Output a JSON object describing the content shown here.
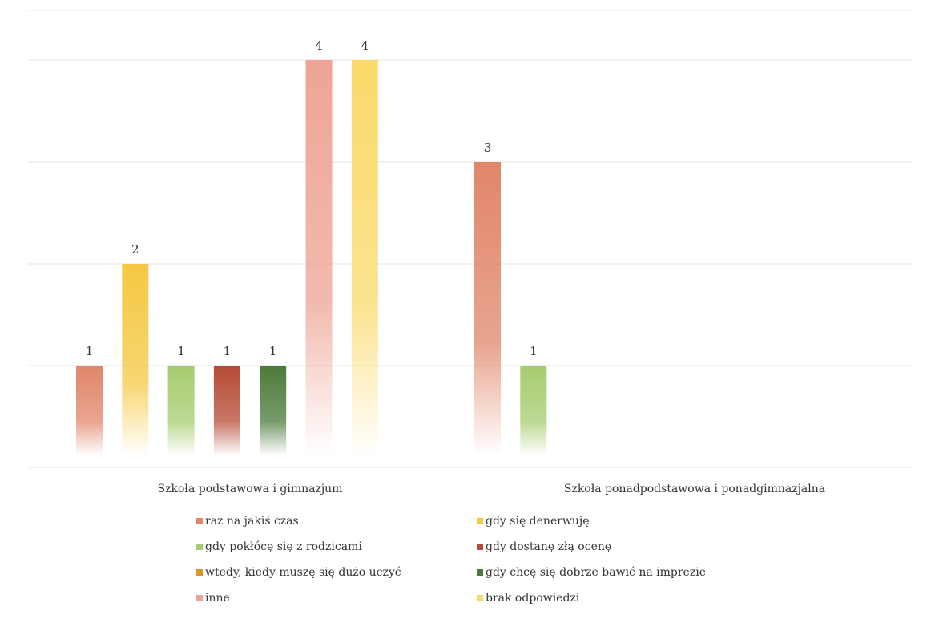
{
  "chart_data": {
    "type": "bar",
    "categories": [
      "Szkoła podstawowa i gimnazjum",
      "Szkoła ponadpodstawowa i ponadgimnazjalna"
    ],
    "series": [
      {
        "name": "raz na jakiś czas",
        "color": "#e0866a",
        "values": [
          1,
          3
        ]
      },
      {
        "name": "gdy się denerwuję",
        "color": "#f5c842",
        "values": [
          2,
          null
        ]
      },
      {
        "name": "gdy pokłócę się z rodzicami",
        "color": "#a6cc6e",
        "values": [
          1,
          1
        ]
      },
      {
        "name": "gdy dostanę złą ocenę",
        "color": "#b64a35",
        "values": [
          1,
          null
        ]
      },
      {
        "name": "wtedy, kiedy muszę się dużo uczyć",
        "color": "#d9952a",
        "values": [
          null,
          null
        ]
      },
      {
        "name": "gdy chcę się dobrze bawić na imprezie",
        "color": "#4c7a3a",
        "values": [
          1,
          null
        ]
      },
      {
        "name": "inne",
        "color": "#eea494",
        "values": [
          4,
          null
        ]
      },
      {
        "name": "brak odpowiedzi",
        "color": "#fada6a",
        "values": [
          4,
          null
        ]
      }
    ],
    "ylim": [
      0,
      4
    ],
    "grid": true,
    "legend_position": "bottom"
  }
}
